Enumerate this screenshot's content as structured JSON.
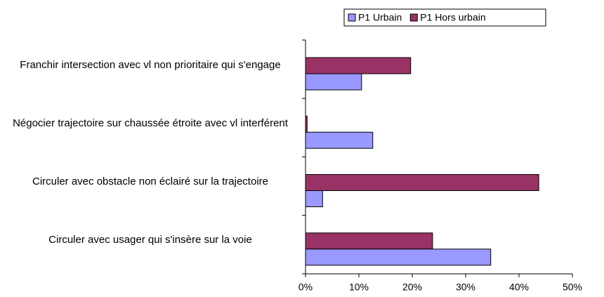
{
  "chart_data": {
    "type": "hbar",
    "categories": [
      "Franchir intersection avec vl non prioritaire qui s'engage",
      "Négocier trajectoire sur chaussée étroite avec vl interférent",
      "Circuler avec obstacle non éclairé sur la trajectoire",
      "Circuler avec usager qui s'insère sur la voie"
    ],
    "series": [
      {
        "name": "P1 Urbain",
        "color": "#9999ff",
        "values": [
          10.5,
          12.6,
          3.2,
          34.7
        ]
      },
      {
        "name": "P1 Hors urbain",
        "color": "#993366",
        "values": [
          19.7,
          0.3,
          43.7,
          23.8
        ]
      }
    ],
    "xlim": [
      0,
      50
    ],
    "xticks": [
      {
        "value": 0,
        "label": "0%"
      },
      {
        "value": 10,
        "label": "10%"
      },
      {
        "value": 20,
        "label": "20%"
      },
      {
        "value": 30,
        "label": "30%"
      },
      {
        "value": 40,
        "label": "40%"
      },
      {
        "value": 50,
        "label": "50%"
      }
    ],
    "grid": false,
    "legend": "top-right"
  }
}
